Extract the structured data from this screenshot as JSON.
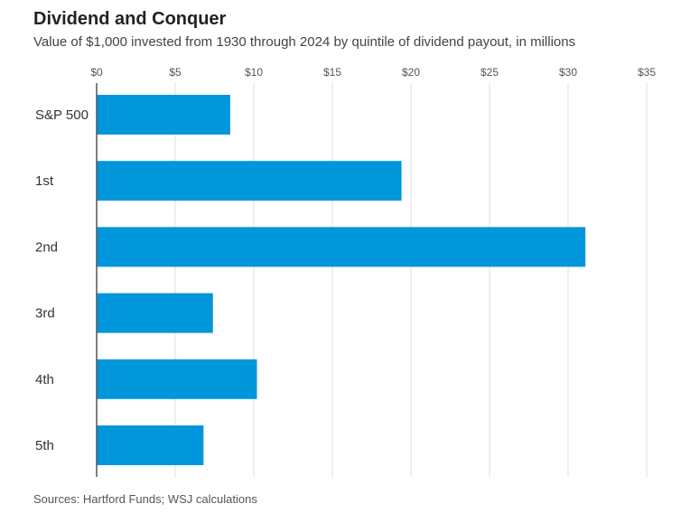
{
  "chart_data": {
    "type": "bar",
    "orientation": "horizontal",
    "title": "Dividend and Conquer",
    "subtitle": "Value of $1,000 invested from 1930 through 2024 by quintile of dividend payout, in millions",
    "categories": [
      "S&P 500",
      "1st",
      "2nd",
      "3rd",
      "4th",
      "5th"
    ],
    "values": [
      8.5,
      19.4,
      31.1,
      7.4,
      10.2,
      6.8
    ],
    "xlim": [
      0,
      35
    ],
    "xticks": [
      0,
      5,
      10,
      15,
      20,
      25,
      30,
      35
    ],
    "xtick_labels": [
      "$0",
      "$5",
      "$10",
      "$15",
      "$20",
      "$25",
      "$30",
      "$35"
    ],
    "xaxis_position": "top",
    "grid": true,
    "bar_color": "#0096db",
    "source": "Sources: Hartford Funds; WSJ calculations"
  }
}
